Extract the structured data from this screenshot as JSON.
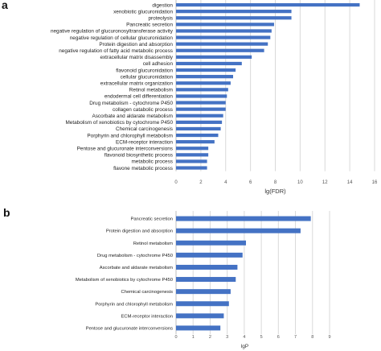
{
  "panel_labels": {
    "a": "a",
    "b": "b"
  },
  "colors": {
    "bar": "#4472C4",
    "grid": "#d9d9d9",
    "axis": "#bfbfbf"
  },
  "chart_data": [
    {
      "type": "bar",
      "orientation": "horizontal",
      "xlabel": "lg(FDR)",
      "xlim": [
        0,
        16
      ],
      "xticks": [
        "0",
        "2",
        "4",
        "6",
        "8",
        "10",
        "12",
        "14",
        "16"
      ],
      "grid": true,
      "categories": [
        "digestion",
        "xenobiotic glucuronidation",
        "proteolysis",
        "Pancreatic secretion",
        "negative regulation of glucuronosyltransferase activity",
        "negative regulation of cellular glucuronidation",
        "Protein digestion and absorption",
        "negative regulation of fatty acid metabolic process",
        "extracellular matrix disassembly",
        "cell adhesion",
        "flavonoid glucuronidation",
        "cellular glucuronidation",
        "extracellular matrix organization",
        "Retinol metabolism",
        "endodermal cell differentiation",
        "Drug metabolism - cytochrome P450",
        "collagen catabolic process",
        "Ascorbate and aldarate metabolism",
        "Metabolism of xenobiotics by cytochrome P450",
        "Chemical carcinogenesis",
        "Porphyrin and chlorophyll metabolism",
        "ECM-receptor interaction",
        "Pentose and glucuronate interconversions",
        "flavonoid biosynthetic process",
        "metabolic process",
        "flavone metabolic process"
      ],
      "values": [
        14.8,
        9.3,
        9.3,
        7.9,
        7.7,
        7.6,
        7.4,
        7.1,
        6.1,
        5.3,
        4.8,
        4.6,
        4.4,
        4.2,
        4.1,
        4.0,
        4.0,
        3.8,
        3.7,
        3.6,
        3.4,
        3.1,
        2.6,
        2.6,
        2.5,
        2.5
      ]
    },
    {
      "type": "bar",
      "orientation": "horizontal",
      "xlabel": "lgP",
      "xlim": [
        0,
        9
      ],
      "xticks": [
        "0",
        "1",
        "2",
        "3",
        "4",
        "5",
        "6",
        "7",
        "8",
        "9"
      ],
      "grid": true,
      "categories": [
        "Pancreatic secretion",
        "Protein digestion  and absorption",
        "Retinol metabolism",
        "Drug metabolism - cytochrome P450",
        "Ascorbate and aldarate metabolism",
        "Metabolism of xenobiotics by cytochrome P450",
        "Chemical carcinogenesis",
        "Porphyrin and chlorophyll metabolism",
        "ECM-receptor interaction",
        "Pentose and glucuronate interconversions"
      ],
      "values": [
        7.9,
        7.3,
        4.1,
        3.9,
        3.6,
        3.5,
        3.2,
        3.1,
        2.8,
        2.6
      ]
    }
  ]
}
